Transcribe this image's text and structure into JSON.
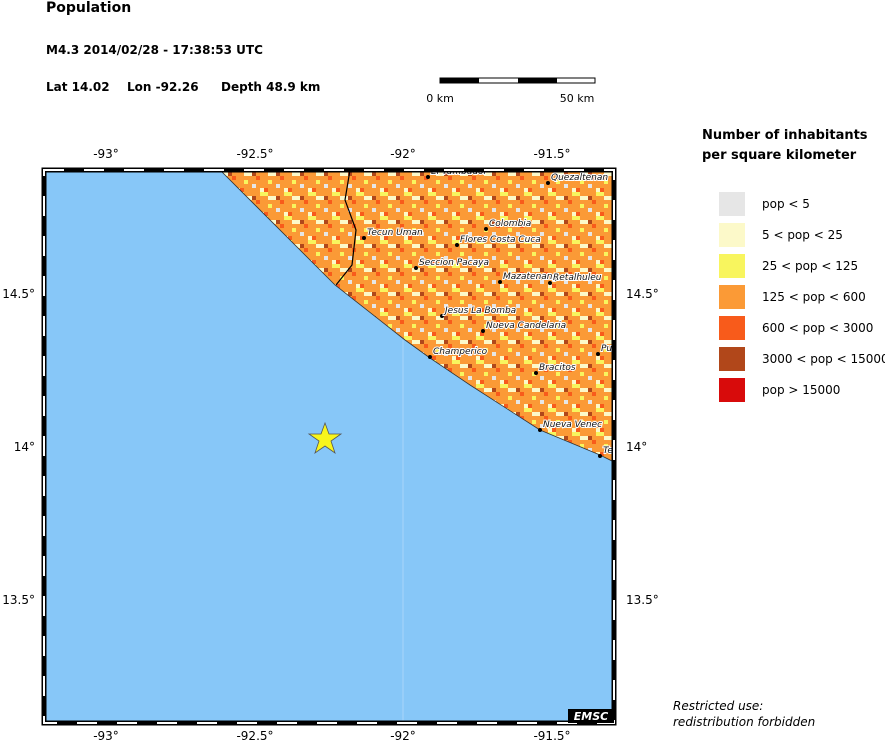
{
  "header": {
    "title": "Population",
    "event": "M4.3  2014/02/28 - 17:38:53 UTC",
    "lat": "Lat 14.02",
    "lon": "Lon -92.26",
    "depth": "Depth  48.9 km"
  },
  "scale": {
    "start": "0 km",
    "end": "50 km"
  },
  "map": {
    "lon_labels": [
      "-93°",
      "-92.5°",
      "-92°",
      "-91.5°"
    ],
    "lat_labels": [
      "14.5°",
      "14°",
      "13.5°"
    ],
    "cities": [
      "El Tumbador",
      "Quezaltenan",
      "Colombia",
      "Tecun Uman",
      "Flores Costa Cuca",
      "Seccion Pacaya",
      "Mazatenang",
      "Retalhuleu",
      "Jesus La Bomba",
      "Nueva Candelaria",
      "Champerico",
      "Bracitos",
      "Nueva Venec",
      "Pue",
      "Te"
    ],
    "credit": "EMSC"
  },
  "legend": {
    "title": [
      "Number of inhabitants",
      "per square kilometer"
    ],
    "items": [
      {
        "label": "pop < 5",
        "color": "#e6e6e6"
      },
      {
        "label": "5 < pop < 25",
        "color": "#fcf9c9"
      },
      {
        "label": "25 < pop < 125",
        "color": "#f8f55e"
      },
      {
        "label": "125 < pop < 600",
        "color": "#fb9a36"
      },
      {
        "label": "600 < pop < 3000",
        "color": "#f85b1b"
      },
      {
        "label": "3000 < pop < 15000",
        "color": "#b1471a"
      },
      {
        "label": "pop > 15000",
        "color": "#d80b0b"
      }
    ]
  },
  "footer": [
    "Restricted use:",
    "redistribution forbidden"
  ]
}
